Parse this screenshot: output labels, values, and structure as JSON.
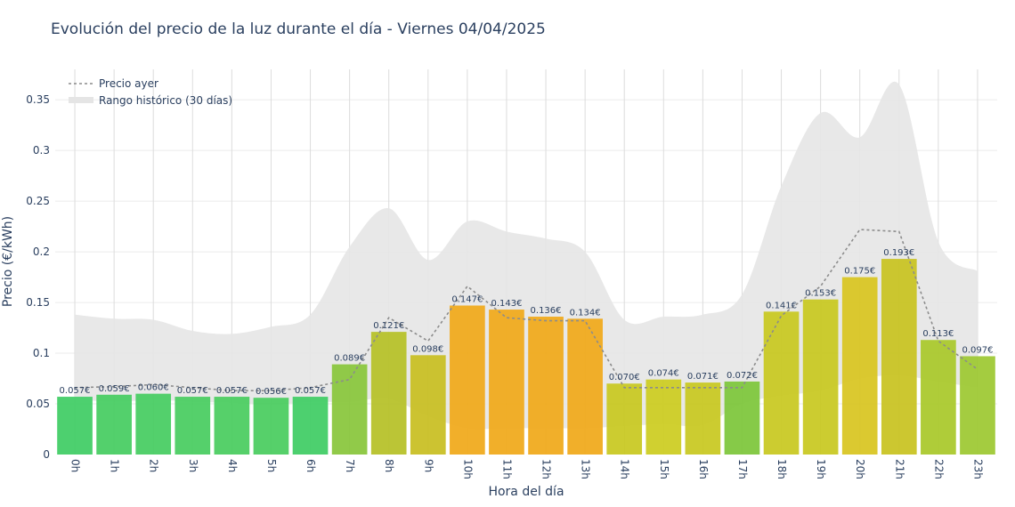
{
  "chart_data": {
    "type": "bar",
    "title": "Evolución del precio de la luz durante el día - Viernes 04/04/2025",
    "xlabel": "Hora del día",
    "ylabel": "Precio (€/kWh)",
    "ylim": [
      0,
      0.38
    ],
    "yticks": [
      "0",
      "0.05",
      "0.1",
      "0.15",
      "0.2",
      "0.25",
      "0.3",
      "0.35"
    ],
    "grid": true,
    "legend_position": "top-left",
    "categories": [
      "0h",
      "1h",
      "2h",
      "3h",
      "4h",
      "5h",
      "6h",
      "7h",
      "8h",
      "9h",
      "10h",
      "11h",
      "12h",
      "13h",
      "14h",
      "15h",
      "16h",
      "17h",
      "18h",
      "19h",
      "20h",
      "21h",
      "22h",
      "23h"
    ],
    "values": [
      0.057,
      0.059,
      0.06,
      0.057,
      0.057,
      0.056,
      0.057,
      0.089,
      0.121,
      0.098,
      0.147,
      0.143,
      0.136,
      0.134,
      0.07,
      0.074,
      0.071,
      0.072,
      0.141,
      0.153,
      0.175,
      0.193,
      0.113,
      0.097
    ],
    "value_labels": [
      "0.057€",
      "0.059€",
      "0.060€",
      "0.057€",
      "0.057€",
      "0.056€",
      "0.057€",
      "0.089€",
      "0.121€",
      "0.098€",
      "0.147€",
      "0.143€",
      "0.136€",
      "0.134€",
      "0.070€",
      "0.074€",
      "0.071€",
      "0.072€",
      "0.141€",
      "0.153€",
      "0.175€",
      "0.193€",
      "0.113€",
      "0.097€"
    ],
    "bar_colors": [
      "#3ecc63",
      "#44cc5f",
      "#44cc5f",
      "#47cc5e",
      "#48cc5d",
      "#48cc5d",
      "#3ecc63",
      "#88c63a",
      "#b5c025",
      "#c8be20",
      "#f0a818",
      "#f0a818",
      "#f0a818",
      "#f0a818",
      "#c8c81e",
      "#cccc1e",
      "#c8c81e",
      "#7cc638",
      "#c8c81e",
      "#c8c81e",
      "#d8c41e",
      "#c8c21e",
      "#a8c828",
      "#9cc830"
    ],
    "series": [
      {
        "name": "Precio ayer",
        "type": "line",
        "style": "dotted",
        "color": "#8c8c8c",
        "values": [
          0.066,
          0.067,
          0.069,
          0.066,
          0.063,
          0.063,
          0.066,
          0.074,
          0.135,
          0.112,
          0.166,
          0.135,
          0.132,
          0.132,
          0.066,
          0.066,
          0.066,
          0.066,
          0.137,
          0.166,
          0.222,
          0.22,
          0.112,
          0.084
        ]
      },
      {
        "name": "Rango histórico (30 días)",
        "type": "area",
        "color": "#e5e5e5",
        "upper": [
          0.138,
          0.134,
          0.133,
          0.122,
          0.119,
          0.126,
          0.138,
          0.205,
          0.243,
          0.192,
          0.23,
          0.22,
          0.213,
          0.2,
          0.133,
          0.136,
          0.138,
          0.158,
          0.265,
          0.337,
          0.313,
          0.365,
          0.21,
          0.181
        ],
        "lower": [
          0.055,
          0.052,
          0.054,
          0.052,
          0.051,
          0.049,
          0.052,
          0.052,
          0.055,
          0.038,
          0.026,
          0.026,
          0.026,
          0.026,
          0.028,
          0.03,
          0.029,
          0.05,
          0.058,
          0.063,
          0.075,
          0.078,
          0.072,
          0.066
        ]
      }
    ]
  }
}
